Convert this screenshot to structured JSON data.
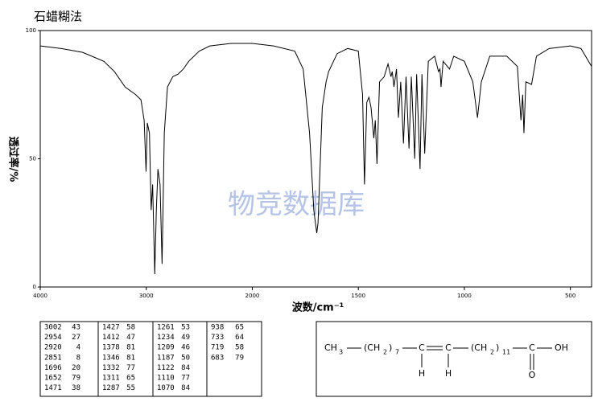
{
  "chart_data": {
    "type": "line",
    "title": "石蜡糊法",
    "watermark": "物竞数据库",
    "xlabel": "波数/cm⁻¹",
    "ylabel": "透过率/%",
    "xlim": [
      4000,
      400
    ],
    "xbreak": 2000,
    "xticks": [
      4000,
      3000,
      2000,
      1500,
      1000,
      500
    ],
    "ylim": [
      0,
      100
    ],
    "yticks": [
      0,
      50,
      100
    ],
    "color": "#000000",
    "x": [
      4000,
      3800,
      3600,
      3400,
      3300,
      3200,
      3100,
      3050,
      3020,
      3002,
      2990,
      2970,
      2954,
      2940,
      2920,
      2905,
      2890,
      2870,
      2851,
      2830,
      2800,
      2750,
      2700,
      2650,
      2600,
      2500,
      2400,
      2200,
      2000,
      1900,
      1800,
      1760,
      1730,
      1710,
      1696,
      1690,
      1670,
      1652,
      1640,
      1600,
      1550,
      1500,
      1480,
      1471,
      1460,
      1450,
      1440,
      1427,
      1420,
      1412,
      1400,
      1378,
      1360,
      1346,
      1340,
      1332,
      1320,
      1311,
      1300,
      1287,
      1275,
      1261,
      1250,
      1234,
      1225,
      1209,
      1200,
      1187,
      1170,
      1140,
      1122,
      1115,
      1110,
      1100,
      1070,
      1050,
      1000,
      960,
      938,
      920,
      880,
      800,
      750,
      733,
      725,
      719,
      710,
      683,
      660,
      600,
      500,
      450,
      400
    ],
    "values": [
      94,
      93,
      91.5,
      88,
      84,
      78,
      75,
      73,
      65,
      45,
      64,
      60,
      30,
      40,
      5,
      30,
      46,
      40,
      9,
      60,
      78,
      82,
      83,
      85,
      88,
      92,
      94,
      95,
      95,
      94,
      92,
      85,
      60,
      30,
      21,
      25,
      70,
      80,
      84,
      91,
      93,
      92,
      75,
      40,
      72,
      74,
      70,
      58,
      65,
      48,
      80,
      82,
      87,
      82,
      84,
      78,
      85,
      66,
      80,
      56,
      82,
      54,
      82,
      50,
      83,
      46,
      83,
      52,
      88,
      90,
      84,
      85,
      78,
      88,
      85,
      90,
      88,
      80,
      66,
      80,
      90,
      90,
      86,
      65,
      75,
      60,
      80,
      79,
      90,
      93,
      94,
      93,
      86
    ]
  },
  "peak_table": {
    "columns": [
      [
        [
          3002,
          43
        ],
        [
          2954,
          27
        ],
        [
          2920,
          4
        ],
        [
          2851,
          8
        ],
        [
          1696,
          20
        ],
        [
          1652,
          79
        ],
        [
          1471,
          38
        ]
      ],
      [
        [
          1427,
          58
        ],
        [
          1412,
          47
        ],
        [
          1378,
          81
        ],
        [
          1346,
          81
        ],
        [
          1332,
          77
        ],
        [
          1311,
          65
        ],
        [
          1287,
          55
        ]
      ],
      [
        [
          1261,
          53
        ],
        [
          1234,
          49
        ],
        [
          1209,
          46
        ],
        [
          1187,
          50
        ],
        [
          1122,
          84
        ],
        [
          1110,
          77
        ],
        [
          1070,
          84
        ]
      ],
      [
        [
          938,
          65
        ],
        [
          733,
          64
        ],
        [
          719,
          58
        ],
        [
          683,
          79
        ]
      ]
    ]
  },
  "structure": {
    "ch3": "CH",
    "ch3_sub": "3",
    "chain1": "(CH",
    "chain1_sub": "2",
    "chain1_close": ")",
    "chain1_n": "7",
    "c1": "C",
    "c2": "C",
    "chain2": "(CH",
    "chain2_sub": "2",
    "chain2_close": ")",
    "chain2_n": "11",
    "c3": "C",
    "oh": "OH",
    "h1": "H",
    "h2": "H",
    "o": "O"
  }
}
